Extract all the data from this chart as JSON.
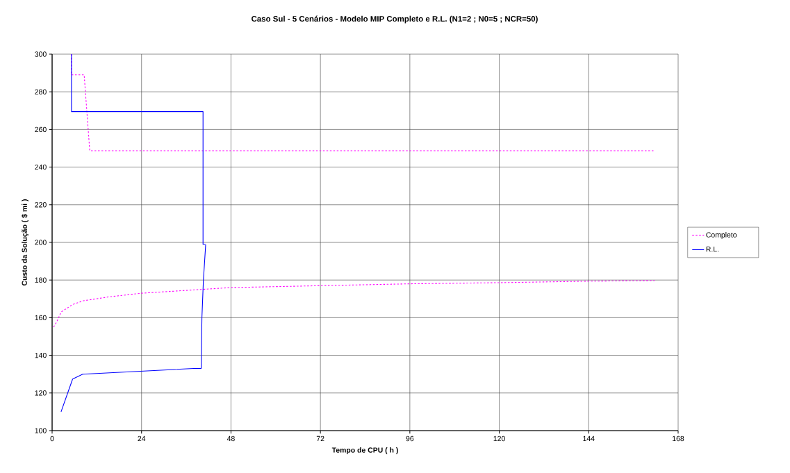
{
  "chart_data": {
    "type": "line",
    "title": "Caso Sul - 5 Cenários - Modelo MIP Completo e R.L. (N1=2 ; N0=5 ; NCR=50)",
    "xlabel": "Tempo de CPU ( h )",
    "ylabel": "Custo da Solução ( $ mi )",
    "xlim": [
      0,
      168
    ],
    "ylim": [
      100,
      300
    ],
    "xticks": [
      0,
      24,
      48,
      72,
      96,
      120,
      144,
      168
    ],
    "yticks": [
      100,
      120,
      140,
      160,
      180,
      200,
      220,
      240,
      260,
      280,
      300
    ],
    "grid": true,
    "legend": "right",
    "marker": "none",
    "series": [
      {
        "name": "Completo",
        "color": "#ff00ff",
        "line_style": "dotted",
        "x": [
          5.2,
          5.2,
          8.6,
          10.1,
          161.7,
          null,
          0.4,
          1.3,
          2.4,
          5.5,
          8.4,
          15,
          24,
          40,
          48,
          72,
          96,
          120,
          144,
          161.7
        ],
        "values": [
          300,
          289,
          289,
          248.7,
          248.7,
          null,
          155,
          158,
          163,
          167,
          169,
          171,
          173,
          175,
          176,
          177,
          178,
          178.6,
          179.4,
          179.7
        ]
      },
      {
        "name": "R.L.",
        "color": "#0000ff",
        "line_style": "solid",
        "x": [
          5.2,
          5.2,
          40.5,
          40.5,
          41.3,
          null,
          2.4,
          5.5,
          8.2,
          38,
          40,
          40.2,
          40.6,
          41.2
        ],
        "values": [
          300,
          269.5,
          269.5,
          199,
          199,
          null,
          110,
          127.4,
          130,
          133,
          133,
          160,
          180,
          198.5
        ]
      }
    ]
  }
}
